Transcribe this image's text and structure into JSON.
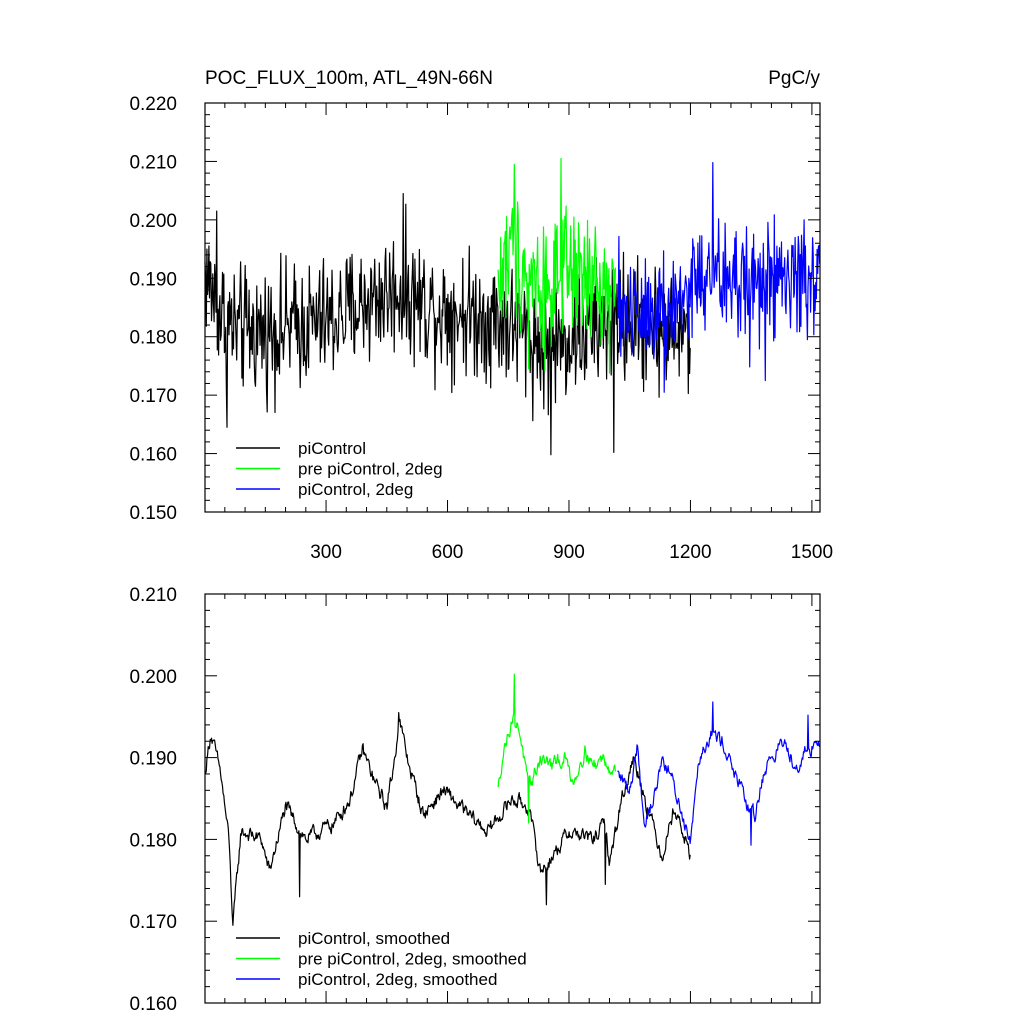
{
  "chart_data": [
    {
      "type": "line",
      "title": "POC_FLUX_100m, ATL_49N-66N",
      "units": "PgC/y",
      "xlim": [
        1,
        1520
      ],
      "ylim": [
        0.15,
        0.22
      ],
      "x_ticks": [
        300,
        600,
        900,
        1200,
        1500
      ],
      "x_tick_labels": [
        "300",
        "600",
        "900",
        "1200",
        "1500"
      ],
      "y_ticks": [
        0.15,
        0.16,
        0.17,
        0.18,
        0.19,
        0.2,
        0.21,
        0.22
      ],
      "y_tick_labels": [
        "0.150",
        "0.160",
        "0.170",
        "0.180",
        "0.190",
        "0.200",
        "0.210",
        "0.220"
      ],
      "legend_position": "bottom-left",
      "series": [
        {
          "name": "piControl",
          "color": "#000000",
          "x_start": 1,
          "x_end": 1200,
          "anchors": [
            [
              1,
              0.191
            ],
            [
              40,
              0.184
            ],
            [
              80,
              0.181
            ],
            [
              150,
              0.181
            ],
            [
              250,
              0.182
            ],
            [
              320,
              0.183
            ],
            [
              400,
              0.186
            ],
            [
              480,
              0.188
            ],
            [
              560,
              0.185
            ],
            [
              650,
              0.184
            ],
            [
              720,
              0.183
            ],
            [
              780,
              0.181
            ],
            [
              840,
              0.178
            ],
            [
              900,
              0.18
            ],
            [
              960,
              0.181
            ],
            [
              1020,
              0.183
            ],
            [
              1080,
              0.182
            ],
            [
              1140,
              0.181
            ],
            [
              1200,
              0.18
            ]
          ],
          "noise": 0.0075,
          "extremes": [
            [
              30,
              0.2015
            ],
            [
              55,
              0.1645
            ],
            [
              490,
              0.2045
            ],
            [
              855,
              0.1598
            ],
            [
              1010,
              0.1602
            ]
          ]
        },
        {
          "name": "pre piControl, 2deg",
          "color": "#00ff00",
          "x_start": 725,
          "x_end": 1015,
          "anchors": [
            [
              725,
              0.189
            ],
            [
              760,
              0.195
            ],
            [
              800,
              0.191
            ],
            [
              850,
              0.188
            ],
            [
              900,
              0.191
            ],
            [
              950,
              0.189
            ],
            [
              1015,
              0.188
            ]
          ],
          "noise": 0.008,
          "extremes": [
            [
              765,
              0.2095
            ],
            [
              880,
              0.2105
            ],
            [
              800,
              0.1745
            ]
          ]
        },
        {
          "name": "piControl, 2deg",
          "color": "#0000ff",
          "x_start": 1020,
          "x_end": 1520,
          "anchors": [
            [
              1020,
              0.184
            ],
            [
              1100,
              0.186
            ],
            [
              1150,
              0.184
            ],
            [
              1200,
              0.189
            ],
            [
              1260,
              0.19
            ],
            [
              1320,
              0.189
            ],
            [
              1400,
              0.189
            ],
            [
              1460,
              0.19
            ],
            [
              1520,
              0.19
            ]
          ],
          "noise": 0.0075,
          "extremes": [
            [
              1255,
              0.2098
            ],
            [
              1135,
              0.1705
            ],
            [
              1385,
              0.1725
            ]
          ]
        }
      ]
    },
    {
      "type": "line",
      "xlim": [
        1,
        1520
      ],
      "ylim": [
        0.16,
        0.21
      ],
      "x_ticks": [
        300,
        600,
        900,
        1200,
        1500
      ],
      "y_ticks": [
        0.16,
        0.17,
        0.18,
        0.19,
        0.2,
        0.21
      ],
      "y_tick_labels": [
        "0.160",
        "0.170",
        "0.180",
        "0.190",
        "0.200",
        "0.210"
      ],
      "legend_position": "bottom-left",
      "series": [
        {
          "name": "piControl, smoothed",
          "color": "#000000",
          "x_start": 1,
          "x_end": 1200,
          "anchors": [
            [
              1,
              0.188
            ],
            [
              15,
              0.193
            ],
            [
              40,
              0.188
            ],
            [
              60,
              0.18
            ],
            [
              70,
              0.1695
            ],
            [
              90,
              0.181
            ],
            [
              140,
              0.18
            ],
            [
              160,
              0.176
            ],
            [
              200,
              0.184
            ],
            [
              250,
              0.18
            ],
            [
              320,
              0.182
            ],
            [
              360,
              0.185
            ],
            [
              390,
              0.191
            ],
            [
              420,
              0.187
            ],
            [
              450,
              0.184
            ],
            [
              470,
              0.19
            ],
            [
              480,
              0.195
            ],
            [
              500,
              0.19
            ],
            [
              540,
              0.183
            ],
            [
              590,
              0.186
            ],
            [
              650,
              0.183
            ],
            [
              700,
              0.181
            ],
            [
              730,
              0.183
            ],
            [
              760,
              0.185
            ],
            [
              800,
              0.184
            ],
            [
              830,
              0.176
            ],
            [
              860,
              0.178
            ],
            [
              900,
              0.181
            ],
            [
              960,
              0.18
            ],
            [
              990,
              0.182
            ],
            [
              1000,
              0.177
            ],
            [
              1030,
              0.185
            ],
            [
              1060,
              0.19
            ],
            [
              1100,
              0.183
            ],
            [
              1130,
              0.178
            ],
            [
              1160,
              0.184
            ],
            [
              1200,
              0.178
            ]
          ],
          "noise": 0.0018,
          "extremes": [
            [
              70,
              0.1695
            ],
            [
              235,
              0.173
            ],
            [
              480,
              0.1955
            ],
            [
              845,
              0.172
            ],
            [
              990,
              0.1745
            ]
          ]
        },
        {
          "name": "pre piControl, 2deg, smoothed",
          "color": "#00ff00",
          "x_start": 725,
          "x_end": 1015,
          "anchors": [
            [
              725,
              0.186
            ],
            [
              735,
              0.19
            ],
            [
              760,
              0.195
            ],
            [
              780,
              0.193
            ],
            [
              800,
              0.186
            ],
            [
              830,
              0.19
            ],
            [
              860,
              0.189
            ],
            [
              890,
              0.19
            ],
            [
              910,
              0.187
            ],
            [
              940,
              0.191
            ],
            [
              960,
              0.189
            ],
            [
              985,
              0.19
            ],
            [
              1015,
              0.188
            ]
          ],
          "noise": 0.0018,
          "extremes": [
            [
              765,
              0.2002
            ],
            [
              800,
              0.182
            ]
          ]
        },
        {
          "name": "piControl, 2deg, smoothed",
          "color": "#0000ff",
          "x_start": 1020,
          "x_end": 1520,
          "anchors": [
            [
              1020,
              0.188
            ],
            [
              1050,
              0.186
            ],
            [
              1070,
              0.192
            ],
            [
              1085,
              0.182
            ],
            [
              1110,
              0.185
            ],
            [
              1130,
              0.19
            ],
            [
              1150,
              0.188
            ],
            [
              1180,
              0.183
            ],
            [
              1200,
              0.18
            ],
            [
              1220,
              0.19
            ],
            [
              1250,
              0.193
            ],
            [
              1280,
              0.192
            ],
            [
              1310,
              0.188
            ],
            [
              1340,
              0.184
            ],
            [
              1360,
              0.183
            ],
            [
              1380,
              0.188
            ],
            [
              1400,
              0.19
            ],
            [
              1430,
              0.192
            ],
            [
              1460,
              0.189
            ],
            [
              1490,
              0.191
            ],
            [
              1520,
              0.192
            ]
          ],
          "noise": 0.0018,
          "extremes": [
            [
              1255,
              0.1968
            ],
            [
              1350,
              0.1793
            ],
            [
              1490,
              0.1952
            ]
          ]
        }
      ]
    }
  ]
}
